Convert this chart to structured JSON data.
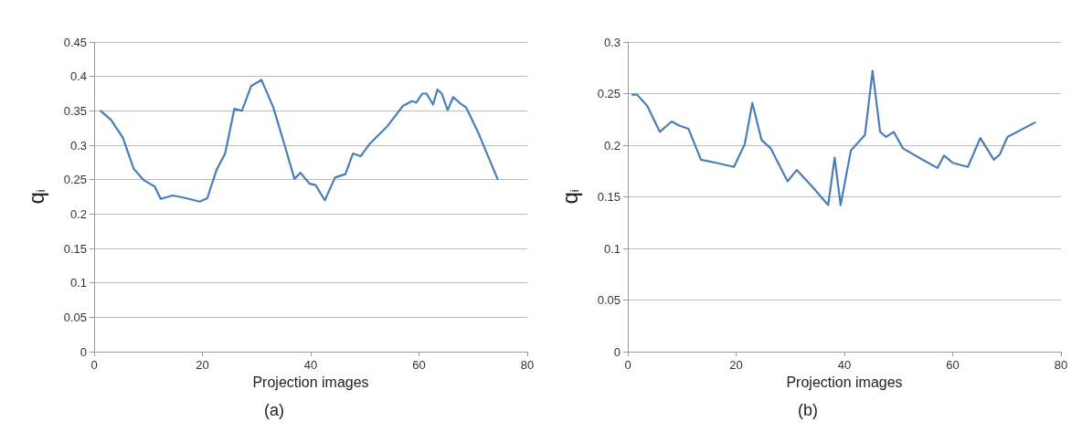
{
  "chart_data": [
    {
      "type": "line",
      "xlabel": "Projection images",
      "ylabel": "q$_{i}$",
      "annotations": [
        "(a)"
      ],
      "grid": "y",
      "marker": "none",
      "xlim": [
        0,
        80
      ],
      "xticks": [
        0,
        20,
        40,
        60,
        80
      ],
      "ylim": [
        0,
        0.45
      ],
      "yticks": [
        0,
        0.05,
        0.1,
        0.15,
        0.2,
        0.25,
        0.3,
        0.35,
        0.4,
        0.45
      ],
      "series": [
        {
          "color": "#4a7ebb",
          "x": [
            1.2,
            3.1,
            5.3,
            7.3,
            9.2,
            11.2,
            12.3,
            14.5,
            17,
            19.5,
            20.9,
            22.6,
            24.2,
            25.9,
            27.3,
            29,
            30.9,
            33.1,
            35.3,
            37,
            38.1,
            39.8,
            40.9,
            42.6,
            44.5,
            46.4,
            47.8,
            49.2,
            50.9,
            54.2,
            57,
            58.7,
            59.5,
            60.6,
            61.4,
            62.6,
            63.4,
            64.2,
            65.3,
            66.3,
            67.6,
            68.7,
            70.9,
            74.5
          ],
          "values": [
            0.35,
            0.337,
            0.311,
            0.266,
            0.249,
            0.24,
            0.222,
            0.227,
            0.223,
            0.218,
            0.223,
            0.264,
            0.288,
            0.353,
            0.35,
            0.386,
            0.395,
            0.355,
            0.297,
            0.251,
            0.26,
            0.244,
            0.242,
            0.22,
            0.253,
            0.258,
            0.288,
            0.284,
            0.302,
            0.328,
            0.357,
            0.364,
            0.362,
            0.375,
            0.375,
            0.359,
            0.381,
            0.375,
            0.351,
            0.37,
            0.361,
            0.355,
            0.319,
            0.251
          ]
        }
      ]
    },
    {
      "type": "line",
      "xlabel": "Projection images",
      "ylabel": "q$_{i}$",
      "annotations": [
        "(b)"
      ],
      "grid": "y",
      "marker": "none",
      "xlim": [
        0,
        80
      ],
      "xticks": [
        0,
        20,
        40,
        60,
        80
      ],
      "ylim": [
        0,
        0.3
      ],
      "yticks": [
        0,
        0.05,
        0.1,
        0.15,
        0.2,
        0.25,
        0.3
      ],
      "series": [
        {
          "color": "#4a7ebb",
          "x": [
            0.84,
            1.7,
            3.6,
            5.9,
            8.1,
            9.5,
            11.2,
            13.5,
            16.3,
            19.6,
            21.6,
            23,
            24.7,
            26.4,
            29.5,
            31.2,
            34.2,
            37,
            38.2,
            39.3,
            41.2,
            43.8,
            45.2,
            46.6,
            47.7,
            49.1,
            50.8,
            54.4,
            57.2,
            58.4,
            60,
            62.8,
            65.1,
            67.6,
            68.7,
            70.1,
            75.2
          ],
          "values": [
            0.249,
            0.249,
            0.238,
            0.213,
            0.223,
            0.219,
            0.216,
            0.186,
            0.183,
            0.179,
            0.201,
            0.241,
            0.205,
            0.197,
            0.165,
            0.176,
            0.159,
            0.142,
            0.188,
            0.142,
            0.195,
            0.21,
            0.272,
            0.213,
            0.208,
            0.213,
            0.197,
            0.186,
            0.178,
            0.19,
            0.183,
            0.179,
            0.207,
            0.186,
            0.191,
            0.208,
            0.222
          ]
        }
      ]
    }
  ]
}
